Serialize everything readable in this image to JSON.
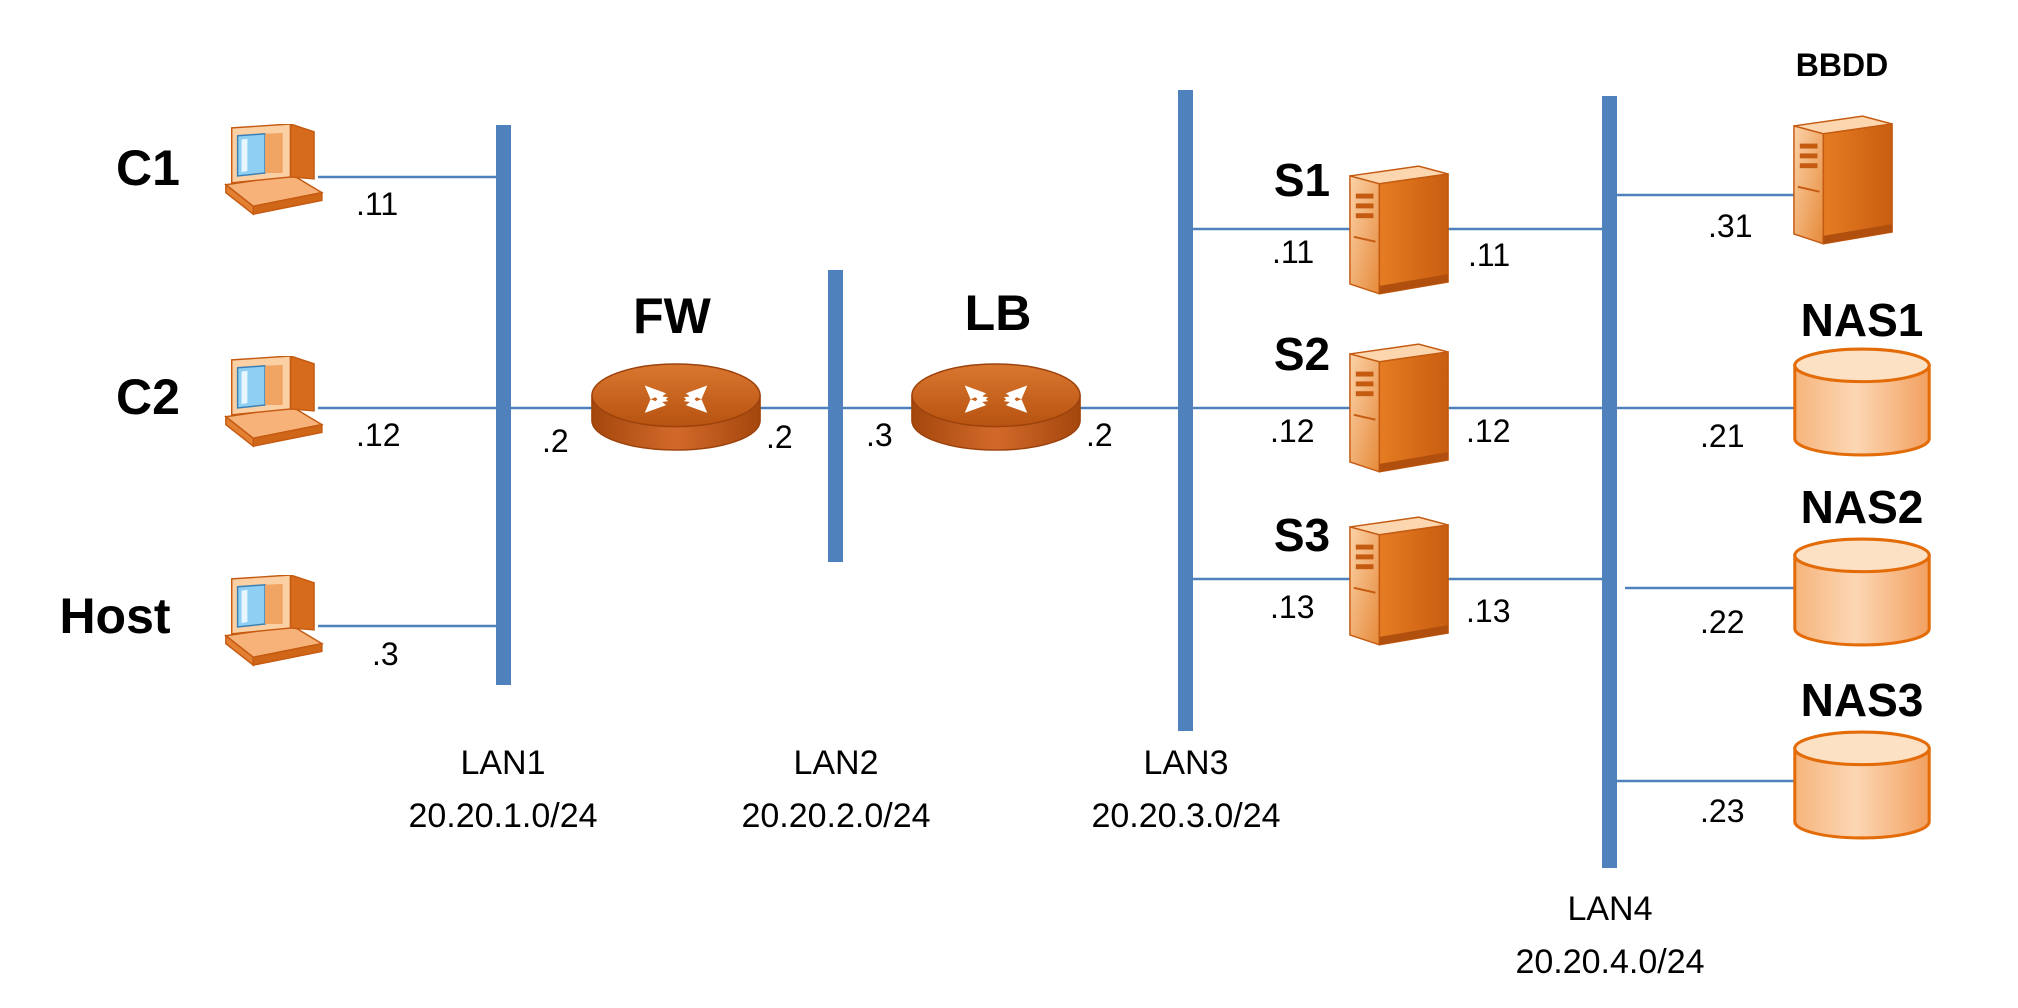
{
  "colors": {
    "bus": "#4f81bd",
    "device_orange": "#e36c09",
    "device_light": "#fac08f",
    "device_dark": "#c55a11",
    "router": "#c0580f",
    "screen": "#9fd4f4"
  },
  "nodes": {
    "c1": "C1",
    "c2": "C2",
    "host": "Host",
    "fw": "FW",
    "lb": "LB",
    "s1": "S1",
    "s2": "S2",
    "s3": "S3",
    "bbdd": "BBDD",
    "nas1": "NAS1",
    "nas2": "NAS2",
    "nas3": "NAS3"
  },
  "icons": {
    "workstation": "workstation-icon",
    "router": "router-icon",
    "server": "server-icon",
    "storage": "storage-cylinder-icon"
  },
  "ips": {
    "c1": ".11",
    "c2": ".12",
    "host": ".3",
    "fw_lan1": ".2",
    "fw_lan2": ".2",
    "lb_lan2": ".3",
    "lb_lan3": ".2",
    "s1_lan3": ".11",
    "s1_lan4": ".11",
    "s2_lan3": ".12",
    "s2_lan4": ".12",
    "s3_lan3": ".13",
    "s3_lan4": ".13",
    "bbdd": ".31",
    "nas1": ".21",
    "nas2": ".22",
    "nas3": ".23"
  },
  "lans": {
    "lan1": {
      "name": "LAN1",
      "net": "20.20.1.0/24"
    },
    "lan2": {
      "name": "LAN2",
      "net": "20.20.2.0/24"
    },
    "lan3": {
      "name": "LAN3",
      "net": "20.20.3.0/24"
    },
    "lan4": {
      "name": "LAN4",
      "net": "20.20.4.0/24"
    }
  }
}
